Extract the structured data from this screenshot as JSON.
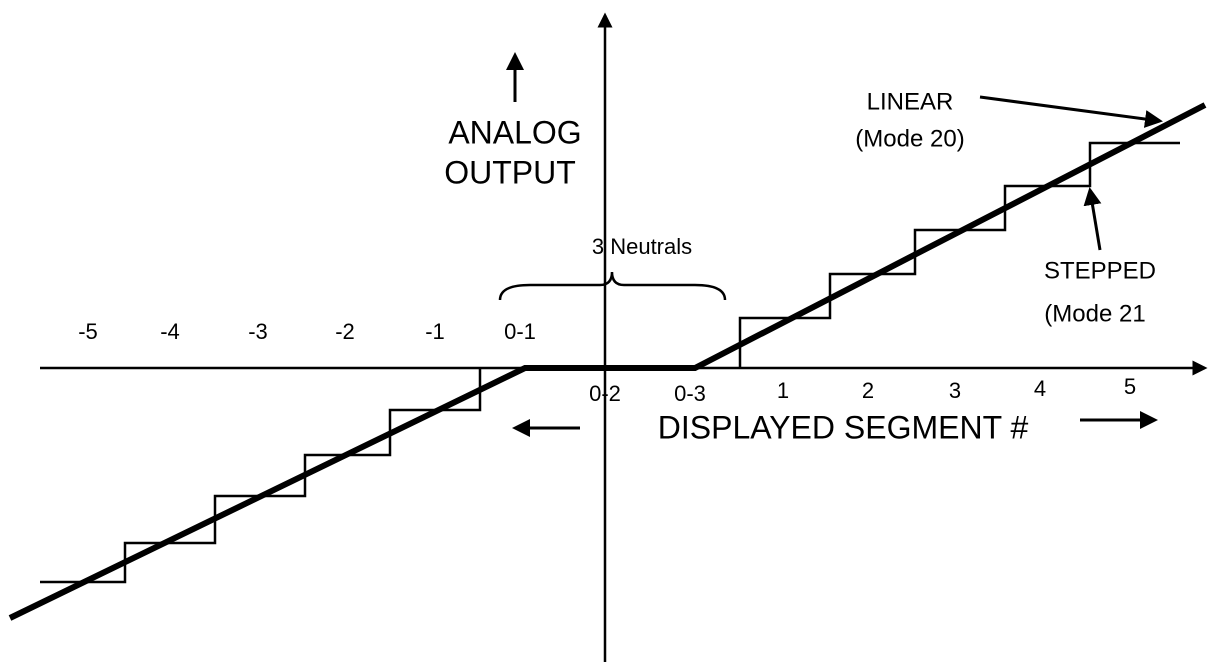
{
  "labels": {
    "analog": "ANALOG",
    "output": "OUTPUT",
    "linear": "LINEAR",
    "linear_mode": "(Mode 20)",
    "stepped": "STEPPED",
    "stepped_mode": "(Mode 21",
    "neutrals": "3 Neutrals",
    "x_axis": "DISPLAYED SEGMENT #"
  },
  "ticks": [
    "-5",
    "-4",
    "-3",
    "-2",
    "-1",
    "0-1",
    "0-2",
    "0-3",
    "1",
    "2",
    "3",
    "4",
    "5"
  ]
}
